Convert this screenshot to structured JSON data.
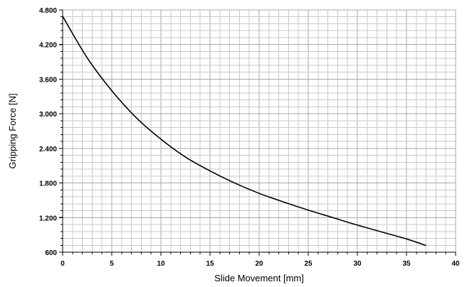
{
  "chart_data": {
    "type": "line",
    "xlabel": "Slide Movement [mm]",
    "ylabel": "Gripping Force [N]",
    "xlim": [
      0,
      40
    ],
    "ylim": [
      600,
      4800
    ],
    "x_ticks": [
      0,
      5,
      10,
      15,
      20,
      25,
      30,
      35,
      40
    ],
    "x_tick_labels": [
      "0",
      "5",
      "10",
      "15",
      "20",
      "25",
      "30",
      "35",
      "40"
    ],
    "y_ticks": [
      600,
      1200,
      1800,
      2400,
      3000,
      3600,
      4200,
      4800
    ],
    "y_tick_labels": [
      "600",
      "1.200",
      "1.800",
      "2.400",
      "3.000",
      "3.600",
      "4.200",
      "4.800"
    ],
    "grid": true,
    "series": [
      {
        "x": [
          0,
          2.5,
          5,
          7.5,
          10,
          12.5,
          15,
          17.5,
          20,
          22.5,
          25,
          27.5,
          30,
          32.5,
          35,
          37
        ],
        "y": [
          4690,
          3970,
          3400,
          2930,
          2560,
          2250,
          2010,
          1800,
          1620,
          1470,
          1330,
          1200,
          1070,
          950,
          830,
          715
        ]
      }
    ],
    "colors": {
      "line": "#000000",
      "grid": "#c8c8c8"
    }
  }
}
